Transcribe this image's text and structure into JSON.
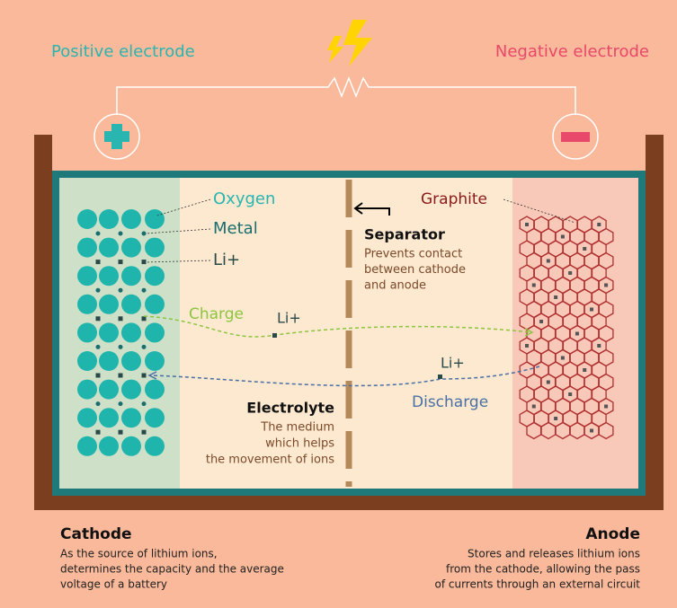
{
  "header": {
    "positive": "Positive electrode",
    "negative": "Negative electrode"
  },
  "labels": {
    "oxygen": "Oxygen",
    "metal": "Metal",
    "li_cathode": "Li+",
    "graphite": "Graphite"
  },
  "separator": {
    "title": "Separator",
    "description": [
      "Prevents contact",
      "between cathode",
      "and anode"
    ]
  },
  "flow": {
    "charge": "Charge",
    "charge_ion": "Li+",
    "discharge_ion": "Li+",
    "discharge": "Discharge"
  },
  "electrolyte": {
    "title": "Electrolyte",
    "description": [
      "The medium",
      "which helps",
      "the movement of ions"
    ]
  },
  "cathode": {
    "title": "Cathode",
    "description": [
      "As the source of lithium ions,",
      "determines the capacity and the average",
      "voltage of a battery"
    ]
  },
  "anode": {
    "title": "Anode",
    "description": [
      "Stores and releases lithium ions",
      "from the cathode, allowing the pass",
      "of currents through an external circuit"
    ]
  }
}
